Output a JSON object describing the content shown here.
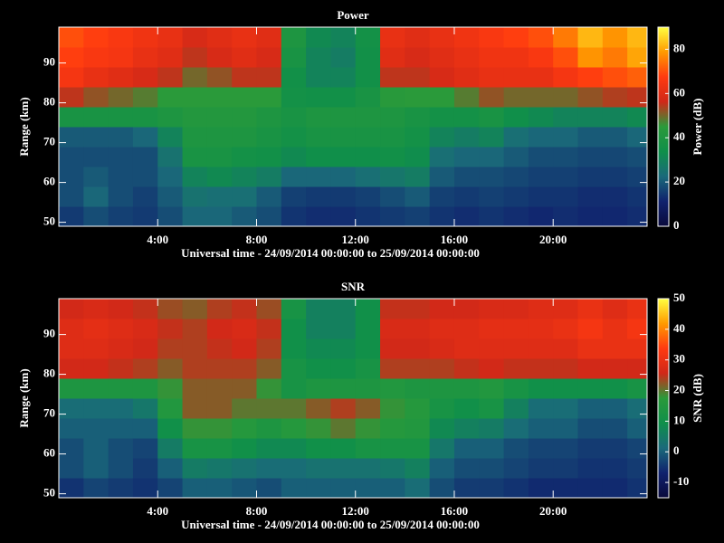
{
  "chart_data": [
    {
      "type": "heatmap",
      "title": "Power",
      "y_label": "Range (km)",
      "x_label": "Universal time - 24/09/2014 00:00:00 to 25/09/2014 00:00:00",
      "colorbar_label": "Power (dB)",
      "xlim": [
        0,
        23.8
      ],
      "xticks": [
        {
          "value": 4,
          "label": "4:00"
        },
        {
          "value": 8,
          "label": "8:00"
        },
        {
          "value": 12,
          "label": "12:00"
        },
        {
          "value": 16,
          "label": "16:00"
        },
        {
          "value": 20,
          "label": "20:00"
        }
      ],
      "ylim": [
        49,
        99
      ],
      "yticks": [
        50,
        60,
        70,
        80,
        90
      ],
      "zlim": [
        0,
        90
      ],
      "zticks": [
        0,
        20,
        40,
        60,
        80
      ],
      "colormap": [
        "#0a0a3c",
        "#10226e",
        "#1a6a7a",
        "#0f8f4a",
        "#2a9a3a",
        "#d02818",
        "#ff3a10",
        "#ff9a00",
        "#ffff40"
      ],
      "x_bins": [
        0,
        1,
        2,
        3,
        4,
        5,
        6,
        7,
        8,
        9,
        10,
        11,
        12,
        13,
        14,
        15,
        16,
        17,
        18,
        19,
        20,
        21,
        22,
        23,
        23.8
      ],
      "y_bins": [
        49,
        54,
        59,
        64,
        69,
        74,
        79,
        84,
        89,
        94,
        99
      ],
      "z": [
        [
          15,
          18,
          16,
          15,
          18,
          22,
          22,
          20,
          18,
          14,
          13,
          13,
          14,
          15,
          16,
          14,
          13,
          14,
          13,
          12,
          13,
          12,
          12,
          13
        ],
        [
          18,
          22,
          18,
          16,
          20,
          25,
          24,
          24,
          20,
          16,
          15,
          15,
          16,
          18,
          20,
          16,
          15,
          16,
          15,
          14,
          14,
          13,
          13,
          14
        ],
        [
          18,
          20,
          18,
          18,
          22,
          30,
          32,
          30,
          28,
          22,
          22,
          22,
          24,
          26,
          28,
          20,
          18,
          18,
          17,
          16,
          16,
          15,
          15,
          16
        ],
        [
          18,
          18,
          18,
          18,
          25,
          38,
          38,
          36,
          35,
          32,
          34,
          34,
          34,
          35,
          33,
          24,
          22,
          22,
          20,
          18,
          18,
          17,
          17,
          18
        ],
        [
          20,
          20,
          20,
          22,
          30,
          40,
          40,
          40,
          38,
          36,
          38,
          38,
          38,
          38,
          36,
          30,
          28,
          30,
          24,
          22,
          22,
          20,
          20,
          22
        ],
        [
          38,
          38,
          38,
          38,
          40,
          42,
          42,
          42,
          40,
          38,
          40,
          40,
          40,
          40,
          38,
          36,
          36,
          38,
          34,
          32,
          30,
          30,
          30,
          32
        ],
        [
          55,
          52,
          50,
          48,
          45,
          45,
          45,
          45,
          45,
          36,
          35,
          35,
          38,
          44,
          45,
          45,
          48,
          52,
          50,
          50,
          50,
          52,
          54,
          55
        ],
        [
          65,
          62,
          60,
          58,
          55,
          50,
          52,
          55,
          55,
          35,
          30,
          30,
          35,
          55,
          55,
          58,
          60,
          62,
          62,
          62,
          65,
          68,
          70,
          72
        ],
        [
          68,
          66,
          65,
          62,
          60,
          55,
          58,
          60,
          58,
          38,
          30,
          28,
          35,
          60,
          58,
          60,
          62,
          64,
          64,
          66,
          70,
          78,
          75,
          80
        ],
        [
          70,
          68,
          66,
          64,
          62,
          58,
          60,
          62,
          60,
          40,
          32,
          30,
          36,
          62,
          60,
          62,
          64,
          66,
          68,
          70,
          75,
          82,
          78,
          82
        ]
      ]
    },
    {
      "type": "heatmap",
      "title": "SNR",
      "y_label": "Range (km)",
      "x_label": "Universal time - 24/09/2014 00:00:00 to 25/09/2014 00:00:00",
      "colorbar_label": "SNR (dB)",
      "xlim": [
        0,
        23.8
      ],
      "xticks": [
        {
          "value": 4,
          "label": "4:00"
        },
        {
          "value": 8,
          "label": "8:00"
        },
        {
          "value": 12,
          "label": "12:00"
        },
        {
          "value": 16,
          "label": "16:00"
        },
        {
          "value": 20,
          "label": "20:00"
        }
      ],
      "ylim": [
        49,
        99
      ],
      "yticks": [
        50,
        60,
        70,
        80,
        90
      ],
      "zlim": [
        -15,
        50
      ],
      "zticks": [
        -10,
        0,
        10,
        20,
        30,
        40,
        50
      ],
      "colormap": [
        "#0a0a3c",
        "#10226e",
        "#1a6a7a",
        "#0f8f4a",
        "#2a9a3a",
        "#d02818",
        "#ff3a10",
        "#ff9a00",
        "#ffff40"
      ],
      "x_bins": [
        0,
        1,
        2,
        3,
        4,
        5,
        6,
        7,
        8,
        9,
        10,
        11,
        12,
        13,
        14,
        15,
        16,
        17,
        18,
        19,
        20,
        21,
        22,
        23,
        23.8
      ],
      "y_bins": [
        49,
        54,
        59,
        64,
        69,
        74,
        79,
        84,
        89,
        94,
        99
      ],
      "z": [
        [
          -5,
          -3,
          -4,
          -5,
          -3,
          0,
          0,
          -1,
          -2,
          0,
          0,
          0,
          0,
          0,
          2,
          -2,
          -4,
          -4,
          -5,
          -6,
          -6,
          -6,
          -6,
          -5
        ],
        [
          -2,
          0,
          -2,
          -4,
          0,
          5,
          4,
          3,
          2,
          2,
          3,
          3,
          3,
          4,
          6,
          0,
          -2,
          -2,
          -3,
          -4,
          -4,
          -5,
          -5,
          -4
        ],
        [
          -2,
          0,
          -2,
          -3,
          5,
          12,
          12,
          10,
          8,
          8,
          10,
          10,
          12,
          12,
          12,
          4,
          0,
          0,
          -2,
          -3,
          -3,
          -4,
          -4,
          -3
        ],
        [
          0,
          0,
          0,
          0,
          10,
          18,
          18,
          16,
          14,
          16,
          18,
          20,
          18,
          16,
          15,
          8,
          6,
          5,
          2,
          0,
          0,
          -2,
          -2,
          0
        ],
        [
          2,
          2,
          2,
          4,
          15,
          22,
          22,
          20,
          20,
          20,
          22,
          24,
          22,
          18,
          16,
          12,
          10,
          12,
          6,
          2,
          2,
          0,
          0,
          2
        ],
        [
          14,
          14,
          14,
          14,
          18,
          22,
          22,
          22,
          18,
          12,
          14,
          14,
          14,
          15,
          14,
          14,
          14,
          15,
          12,
          10,
          10,
          10,
          10,
          12
        ],
        [
          26,
          26,
          25,
          24,
          22,
          24,
          24,
          24,
          22,
          12,
          10,
          10,
          12,
          24,
          24,
          24,
          25,
          26,
          25,
          25,
          25,
          26,
          26,
          26
        ],
        [
          28,
          28,
          27,
          26,
          24,
          24,
          25,
          26,
          24,
          10,
          8,
          8,
          10,
          26,
          26,
          27,
          28,
          28,
          28,
          28,
          28,
          30,
          30,
          30
        ],
        [
          28,
          29,
          28,
          27,
          25,
          24,
          26,
          27,
          25,
          10,
          6,
          6,
          10,
          27,
          27,
          28,
          28,
          29,
          29,
          29,
          30,
          32,
          30,
          32
        ],
        [
          26,
          27,
          26,
          25,
          23,
          22,
          24,
          25,
          23,
          12,
          6,
          6,
          10,
          25,
          25,
          26,
          26,
          27,
          27,
          28,
          28,
          30,
          28,
          30
        ]
      ]
    }
  ]
}
